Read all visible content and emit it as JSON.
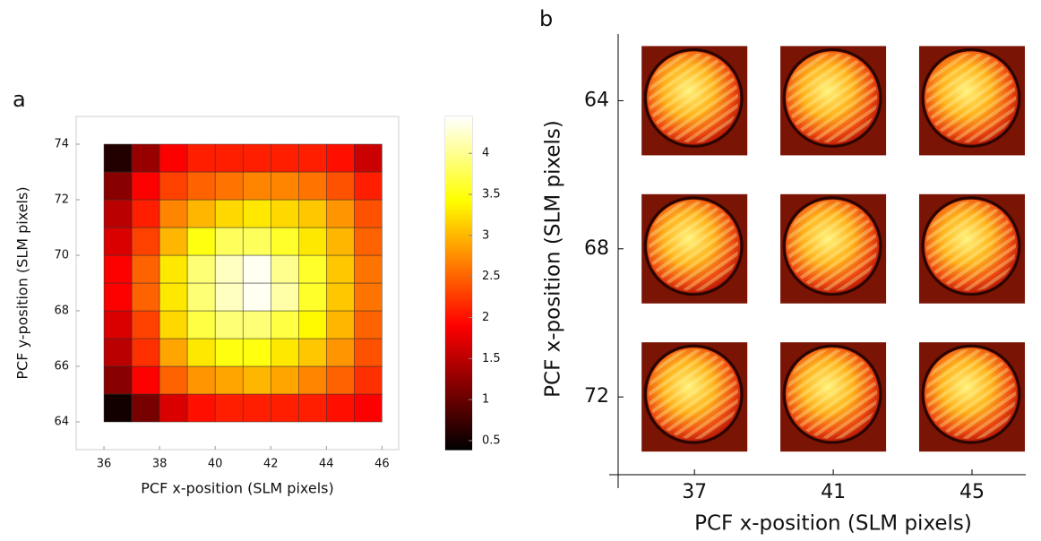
{
  "chart_data": [
    {
      "type": "heatmap",
      "panel": "a",
      "xlabel": "PCF x-position (SLM pixels)",
      "ylabel": "PCF y-position (SLM pixels)",
      "xbins": [
        36,
        37,
        38,
        39,
        40,
        41,
        42,
        43,
        44,
        45,
        46
      ],
      "ybins": [
        64,
        65,
        66,
        67,
        68,
        69,
        70,
        71,
        72,
        73,
        74
      ],
      "z": [
        [
          0.5,
          1.1,
          1.7,
          2.0,
          2.1,
          2.1,
          2.1,
          2.1,
          2.0,
          1.9
        ],
        [
          1.2,
          1.9,
          2.5,
          2.8,
          2.9,
          3.0,
          2.9,
          2.7,
          2.5,
          2.2
        ],
        [
          1.5,
          2.2,
          2.9,
          3.3,
          3.5,
          3.5,
          3.3,
          3.1,
          2.8,
          2.4
        ],
        [
          1.7,
          2.3,
          3.2,
          3.7,
          3.9,
          3.9,
          3.7,
          3.4,
          3.0,
          2.5
        ],
        [
          1.9,
          2.5,
          3.3,
          3.9,
          4.2,
          4.4,
          4.1,
          3.6,
          3.1,
          2.6
        ],
        [
          1.9,
          2.5,
          3.3,
          3.9,
          4.2,
          4.4,
          4.0,
          3.6,
          3.1,
          2.6
        ],
        [
          1.7,
          2.3,
          3.0,
          3.5,
          3.8,
          3.8,
          3.6,
          3.3,
          3.0,
          2.5
        ],
        [
          1.5,
          2.1,
          2.7,
          3.0,
          3.2,
          3.3,
          3.2,
          3.1,
          2.8,
          2.4
        ],
        [
          1.2,
          1.9,
          2.3,
          2.5,
          2.6,
          2.7,
          2.7,
          2.6,
          2.4,
          2.1
        ],
        [
          0.6,
          1.3,
          1.9,
          2.1,
          2.1,
          2.1,
          2.1,
          2.1,
          2.0,
          1.6
        ]
      ],
      "xlim": [
        35,
        46.6
      ],
      "ylim": [
        63,
        75
      ],
      "xticks": [
        36,
        38,
        40,
        42,
        44,
        46
      ],
      "yticks": [
        64,
        66,
        68,
        70,
        72,
        74
      ],
      "colormap": "hot",
      "clim": [
        0.39,
        4.45
      ],
      "cticks": [
        0.5,
        1.0,
        1.5,
        2.0,
        2.5,
        3.0,
        3.5,
        4.0
      ]
    },
    {
      "type": "image-grid",
      "panel": "b",
      "xlabel": "PCF x-position (SLM pixels)",
      "ylabel": "PCF x-position (SLM pixels)",
      "xlim": [
        34.8,
        46.55
      ],
      "ylim": [
        74.1,
        62.2
      ],
      "xticks": [
        37,
        41,
        45
      ],
      "yticks": [
        64,
        68,
        72
      ]
    }
  ]
}
